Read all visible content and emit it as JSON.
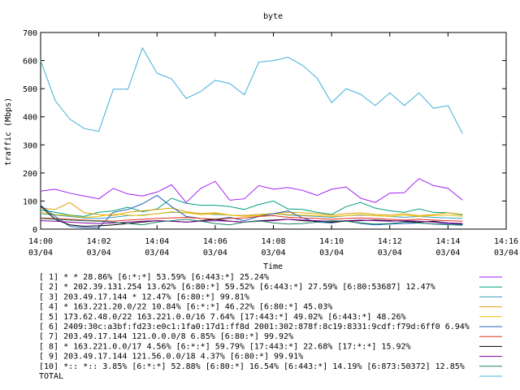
{
  "chart_data": {
    "type": "line",
    "title": "byte",
    "xlabel": "Time",
    "ylabel": "traffic (Mbps)",
    "ylim": [
      0,
      700
    ],
    "y_ticks": [
      0,
      100,
      200,
      300,
      400,
      500,
      600,
      700
    ],
    "x_range_minutes": [
      0,
      16
    ],
    "x_ticks": [
      {
        "minute": 0,
        "time": "14:00",
        "date": "03/04"
      },
      {
        "minute": 2,
        "time": "14:02",
        "date": "03/04"
      },
      {
        "minute": 4,
        "time": "14:04",
        "date": "03/04"
      },
      {
        "minute": 6,
        "time": "14:06",
        "date": "03/04"
      },
      {
        "minute": 8,
        "time": "14:08",
        "date": "03/04"
      },
      {
        "minute": 10,
        "time": "14:10",
        "date": "03/04"
      },
      {
        "minute": 12,
        "time": "14:12",
        "date": "03/04"
      },
      {
        "minute": 14,
        "time": "14:14",
        "date": "03/04"
      },
      {
        "minute": 16,
        "time": "14:16",
        "date": "03/04"
      }
    ],
    "grid": false,
    "legend_position": "bottom",
    "x": [
      0,
      0.5,
      1,
      1.5,
      2,
      2.5,
      3,
      3.5,
      4,
      4.5,
      5,
      5.5,
      6,
      6.5,
      7,
      7.5,
      8,
      8.5,
      9,
      9.5,
      10,
      10.5,
      11,
      11.5,
      12,
      12.5,
      13,
      13.5,
      14,
      14.5
    ],
    "series": [
      {
        "name": "[ 1] * * 28.86%  [6:*:*] 53.59% [6:443:*] 25.24%",
        "color": "#a020f0",
        "values": [
          135,
          142,
          128,
          118,
          108,
          145,
          125,
          118,
          132,
          158,
          95,
          145,
          170,
          103,
          108,
          155,
          142,
          148,
          138,
          120,
          142,
          150,
          110,
          95,
          128,
          130,
          180,
          155,
          145,
          103
        ]
      },
      {
        "name": "[ 2] * 202.39.131.254 13.62%  [6:80:*] 59.52% [6:443:*] 27.59% [6:80:53687] 12.47%",
        "color": "#00a080",
        "values": [
          68,
          60,
          50,
          45,
          60,
          65,
          78,
          62,
          72,
          110,
          92,
          85,
          85,
          80,
          70,
          88,
          100,
          72,
          70,
          60,
          52,
          80,
          95,
          75,
          65,
          60,
          72,
          60,
          58,
          50
        ]
      },
      {
        "name": "[ 3] 203.49.17.144 * 12.47%  [6:80:*] 99.81%",
        "color": "#40a0c0",
        "values": [
          55,
          50,
          45,
          40,
          38,
          42,
          48,
          50,
          55,
          60,
          58,
          55,
          52,
          50,
          48,
          52,
          55,
          50,
          48,
          45,
          42,
          48,
          50,
          48,
          45,
          42,
          45,
          42,
          40,
          38
        ]
      },
      {
        "name": "[ 4] * 163.221.20.0/22 10.84%  [6:*:*] 46.22% [6:80:*] 45.03%",
        "color": "#e0a000",
        "values": [
          75,
          70,
          95,
          58,
          52,
          48,
          60,
          65,
          70,
          75,
          62,
          55,
          58,
          50,
          48,
          52,
          55,
          60,
          58,
          55,
          50,
          55,
          58,
          52,
          50,
          55,
          48,
          52,
          58,
          52
        ]
      },
      {
        "name": "[ 5] 173.62.48.0/22 163.221.0.0/16 7.64%  [17:443:*] 49.02% [6:443:*] 48.26%",
        "color": "#f0c000",
        "values": [
          60,
          52,
          48,
          42,
          45,
          55,
          50,
          48,
          55,
          62,
          58,
          52,
          55,
          50,
          45,
          48,
          55,
          52,
          50,
          48,
          45,
          48,
          52,
          48,
          45,
          50,
          45,
          48,
          50,
          45
        ]
      },
      {
        "name": "[ 6] 2409:30c:a3bf:fd23:e0c1:1fa0:17d1:ff8d 2001:302:878f:8c19:8331:9cdf:f79d:6ff0 6.94%",
        "color": "#2060c0",
        "values": [
          85,
          45,
          10,
          5,
          5,
          60,
          70,
          90,
          120,
          80,
          45,
          38,
          35,
          42,
          30,
          45,
          55,
          65,
          40,
          25,
          22,
          30,
          20,
          15,
          18,
          20,
          22,
          18,
          20,
          16
        ]
      },
      {
        "name": "[ 7] 203.49.17.144 121.0.0.0/8 6.85%  [6:80:*] 99.92%",
        "color": "#e03020",
        "values": [
          40,
          38,
          35,
          32,
          30,
          28,
          32,
          35,
          38,
          40,
          42,
          38,
          35,
          38,
          40,
          45,
          48,
          42,
          40,
          38,
          35,
          38,
          40,
          38,
          35,
          32,
          35,
          32,
          30,
          28
        ]
      },
      {
        "name": "[ 8] * 163.221.0.0/17 4.56%  [6:*:*] 59.79% [17:443:*] 22.68% [17:*:*] 15.92%",
        "color": "#000000",
        "values": [
          82,
          35,
          15,
          10,
          12,
          15,
          20,
          25,
          30,
          28,
          25,
          30,
          35,
          28,
          25,
          30,
          32,
          35,
          30,
          28,
          25,
          28,
          30,
          32,
          30,
          28,
          25,
          28,
          22,
          18
        ]
      },
      {
        "name": "[ 9] 203.49.17.144 121.56.0.0/18 4.37%  [6:80:*] 99.91%",
        "color": "#8000a0",
        "values": [
          30,
          28,
          25,
          22,
          20,
          22,
          25,
          28,
          30,
          28,
          25,
          28,
          30,
          28,
          25,
          28,
          30,
          35,
          32,
          30,
          28,
          30,
          32,
          30,
          28,
          30,
          28,
          25,
          22,
          20
        ]
      },
      {
        "name": "[10] *:: *:: 3.85%  [6:*:*] 52.88% [6:80:*] 16.54% [6:443:*] 14.19% [6:873:50372] 12.85%",
        "color": "#208060",
        "values": [
          38,
          35,
          32,
          30,
          28,
          25,
          20,
          15,
          25,
          30,
          35,
          28,
          20,
          15,
          25,
          30,
          22,
          18,
          20,
          25,
          30,
          28,
          22,
          18,
          20,
          25,
          22,
          18,
          16,
          14
        ]
      },
      {
        "name": "TOTAL",
        "color": "#40b0d8",
        "values": [
          600,
          458,
          392,
          358,
          348,
          498,
          498,
          645,
          555,
          535,
          465,
          490,
          530,
          518,
          478,
          595,
          600,
          612,
          583,
          538,
          450,
          500,
          480,
          440,
          485,
          440,
          485,
          430,
          440,
          340
        ]
      }
    ]
  }
}
